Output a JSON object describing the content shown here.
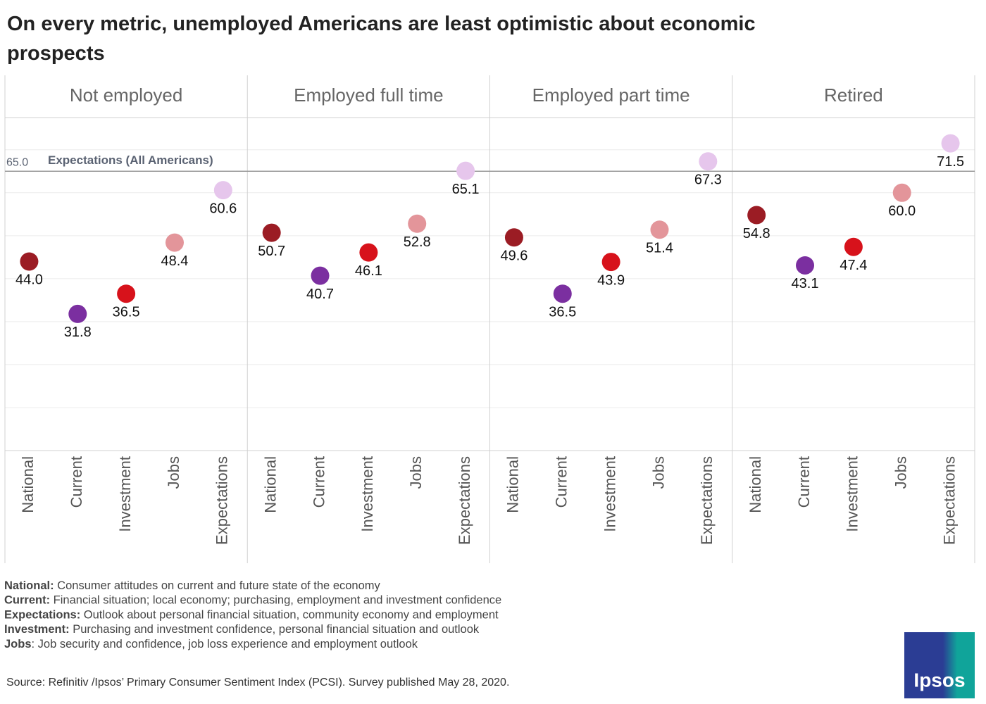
{
  "chart_data": {
    "type": "dot",
    "title": "On every metric, unemployed Americans are least optimistic about economic prospects",
    "categories": [
      "National",
      "Current",
      "Investment",
      "Jobs",
      "Expectations"
    ],
    "colors": [
      "#9b1c24",
      "#7b2fa0",
      "#d7121b",
      "#e3959a",
      "#e6c6ec"
    ],
    "series": [
      {
        "name": "Not employed",
        "values": [
          44.0,
          31.8,
          36.5,
          48.4,
          60.6
        ],
        "value_labels": [
          "44.0",
          "31.8",
          "36.5",
          "48.4",
          "60.6"
        ]
      },
      {
        "name": "Employed full time",
        "values": [
          50.7,
          40.7,
          46.1,
          52.8,
          65.1
        ],
        "value_labels": [
          "50.7",
          "40.7",
          "46.1",
          "52.8",
          "65.1"
        ]
      },
      {
        "name": "Employed part time",
        "values": [
          49.6,
          36.5,
          43.9,
          51.4,
          67.3
        ],
        "value_labels": [
          "49.6",
          "36.5",
          "43.9",
          "51.4",
          "67.3"
        ]
      },
      {
        "name": "Retired",
        "values": [
          54.8,
          43.1,
          47.4,
          60.0,
          71.5
        ],
        "value_labels": [
          "54.8",
          "43.1",
          "47.4",
          "60.0",
          "71.5"
        ]
      }
    ],
    "ylim": [
      0,
      77.5
    ],
    "yticks": [
      0,
      10,
      20,
      30,
      40,
      50,
      60,
      70
    ],
    "grid": true,
    "reference_line": {
      "value": 65.0,
      "value_label": "65.0",
      "label": "Expectations (All Americans)"
    },
    "notes": [
      {
        "term": "National:",
        "text": " Consumer attitudes on current and future state of the economy"
      },
      {
        "term": "Current:",
        "text": " Financial situation; local economy; purchasing, employment and investment confidence"
      },
      {
        "term": "Expectations:",
        "text": " Outlook about personal financial situation, community economy and employment"
      },
      {
        "term": "Investment:",
        "text": " Purchasing and investment confidence, personal financial situation and outlook"
      },
      {
        "term": "Jobs",
        "text": ": Job security and confidence, job loss experience and employment outlook"
      }
    ],
    "source": "Source: Refinitiv /Ipsos’ Primary Consumer Sentiment Index (PCSI). Survey published May 28, 2020.",
    "logo": "Ipsos"
  }
}
